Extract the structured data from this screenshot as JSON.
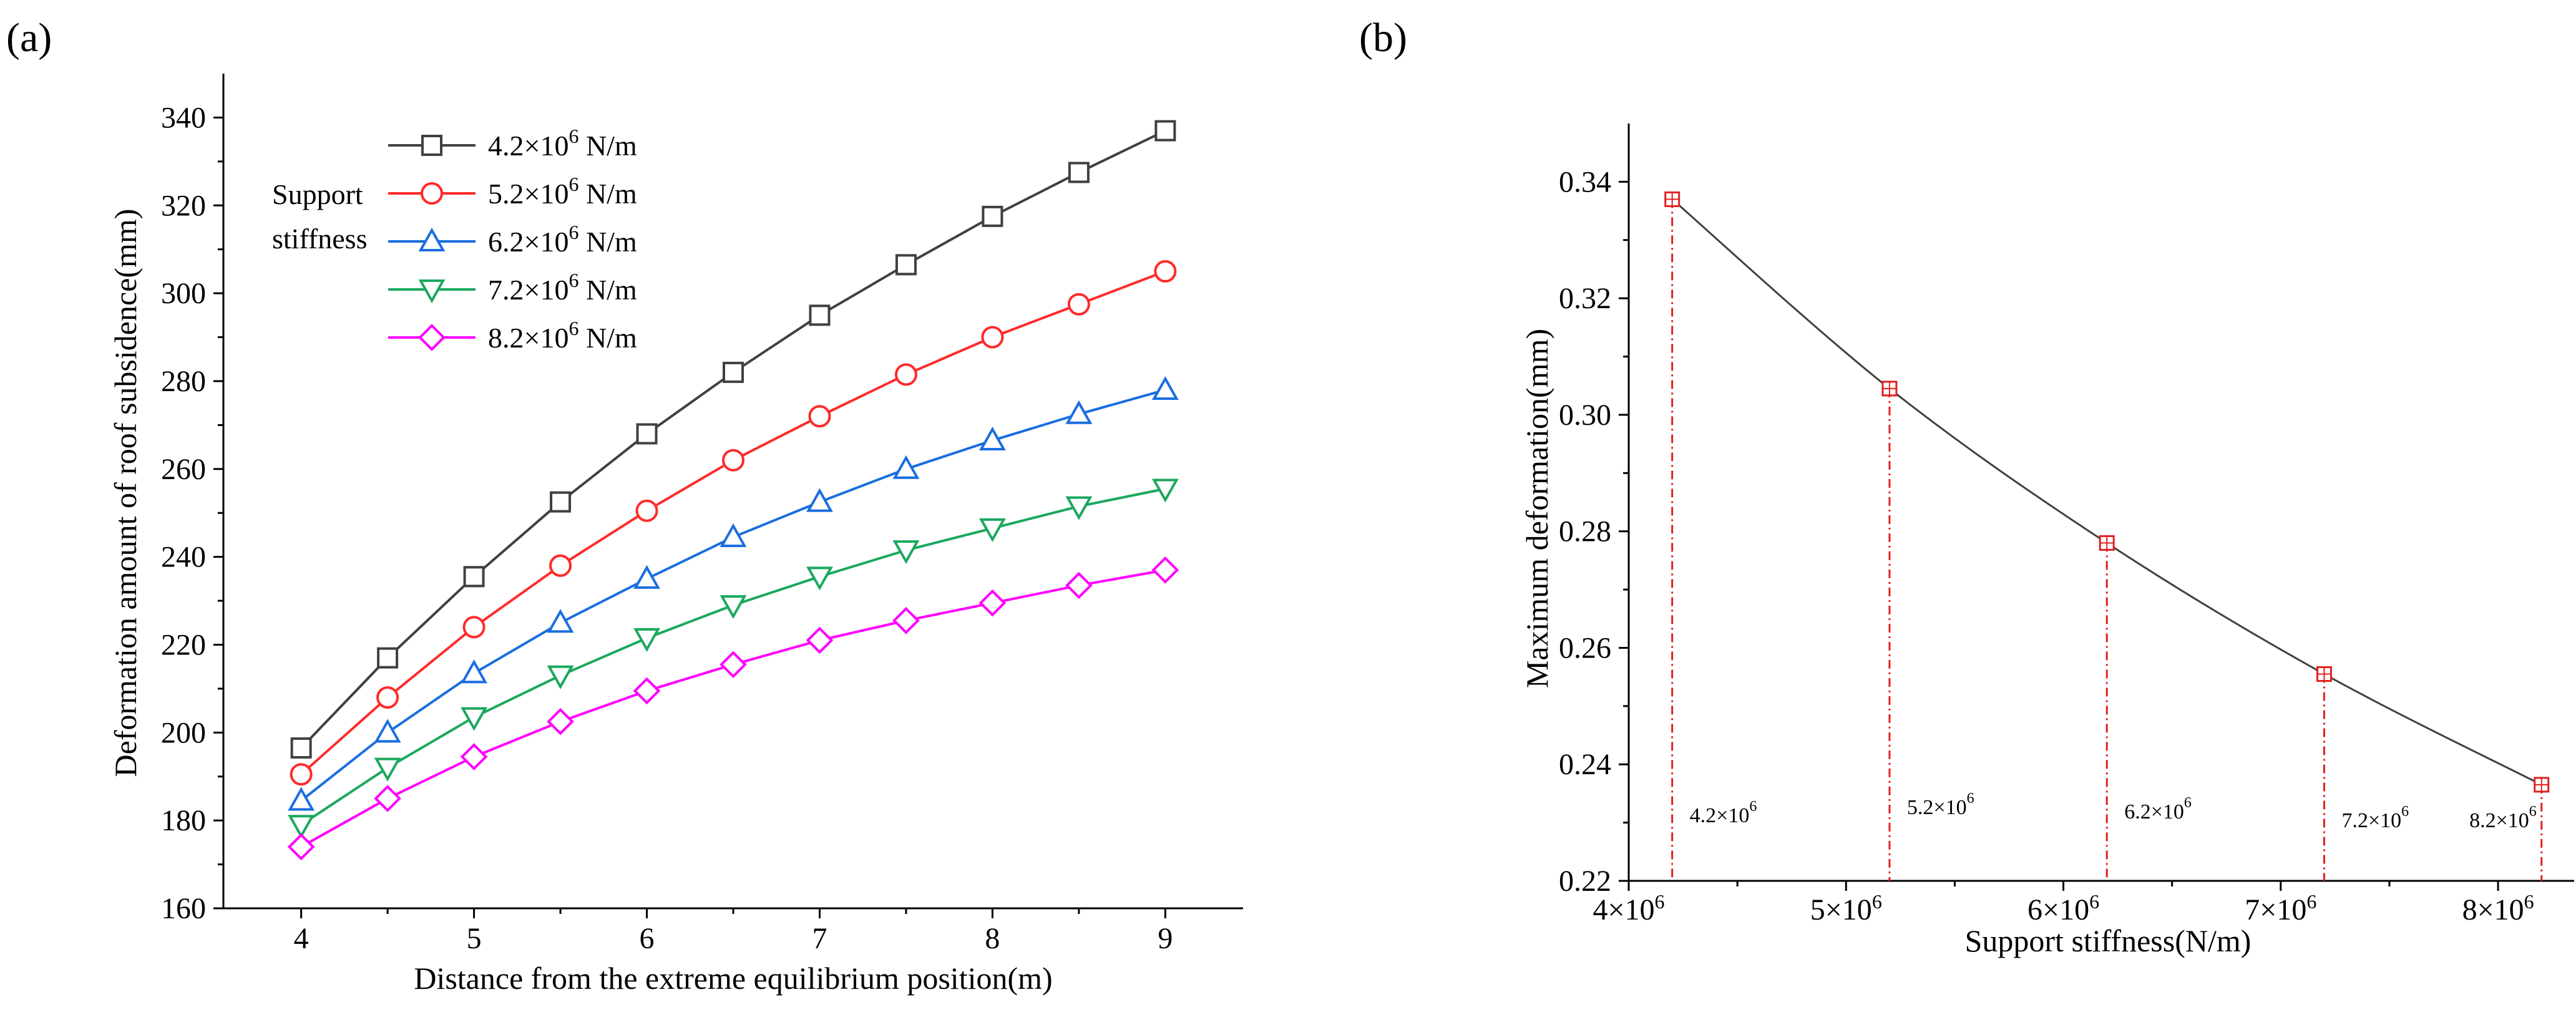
{
  "chart_data": [
    {
      "panel_label": "(a)",
      "type": "line",
      "xlabel": "Distance from the extreme equilibrium position(m)",
      "ylabel": "Deformation amount of roof subsidence(mm)",
      "xlim": [
        3.55,
        9.45
      ],
      "ylim": [
        160,
        350
      ],
      "xticks": [
        4,
        5,
        6,
        7,
        8,
        9
      ],
      "yticks": [
        160,
        180,
        200,
        220,
        240,
        260,
        280,
        300,
        320,
        340
      ],
      "legend_title": [
        "Support",
        "stiffness"
      ],
      "legend_position": "top-left",
      "x": [
        4,
        4.5,
        5,
        5.5,
        6,
        6.5,
        7,
        7.5,
        8,
        8.5,
        9
      ],
      "series": [
        {
          "name": "4.2×10⁶ N/m",
          "mantissa": "4.2",
          "unit": "N/m",
          "color": "#404040",
          "marker": "square",
          "values": [
            196.5,
            217,
            235.5,
            252.5,
            268,
            282,
            295,
            306.5,
            317.5,
            327.5,
            337
          ]
        },
        {
          "name": "5.2×10⁶ N/m",
          "mantissa": "5.2",
          "unit": "N/m",
          "color": "#ff2a2a",
          "marker": "circle",
          "values": [
            190.5,
            208,
            224,
            238,
            250.5,
            262,
            272,
            281.5,
            290,
            297.5,
            305
          ]
        },
        {
          "name": "6.2×10⁶ N/m",
          "mantissa": "6.2",
          "unit": "N/m",
          "color": "#1a6ee0",
          "marker": "triangle-up",
          "values": [
            184.5,
            200,
            213.5,
            225,
            235,
            244.5,
            252.5,
            260,
            266.5,
            272.5,
            278
          ]
        },
        {
          "name": "7.2×10⁶ N/m",
          "mantissa": "7.2",
          "unit": "N/m",
          "color": "#1aa85e",
          "marker": "triangle-down",
          "values": [
            179,
            192,
            203.5,
            213,
            221.5,
            229,
            235.5,
            241.5,
            246.5,
            251.5,
            255.5
          ]
        },
        {
          "name": "8.2×10⁶ N/m",
          "mantissa": "8.2",
          "unit": "N/m",
          "color": "#ff00ff",
          "marker": "diamond",
          "values": [
            174,
            185,
            194.5,
            202.5,
            209.5,
            215.5,
            221,
            225.5,
            229.5,
            233.5,
            237
          ]
        }
      ]
    },
    {
      "panel_label": "(b)",
      "type": "line",
      "xlabel": "Support stiffness(N/m)",
      "ylabel": "Maximum deformation(mm)",
      "xlim": [
        4.0,
        8.35
      ],
      "ylim": [
        0.22,
        0.35
      ],
      "x_scale_note": "x values in units of 10^6 N/m",
      "xticks": [
        {
          "value": 4,
          "label": "4×10"
        },
        {
          "value": 5,
          "label": "5×10"
        },
        {
          "value": 6,
          "label": "6×10"
        },
        {
          "value": 7,
          "label": "7×10"
        },
        {
          "value": 8,
          "label": "8×10"
        }
      ],
      "tick_exponent": "6",
      "yticks": [
        "0.22",
        "0.24",
        "0.26",
        "0.28",
        "0.30",
        "0.32",
        "0.34"
      ],
      "series": [
        {
          "name": "Maximum deformation",
          "color": "#404040",
          "marker": "square-cross",
          "marker_color": "#e02020",
          "x": [
            4.2,
            5.2,
            6.2,
            7.2,
            8.2
          ],
          "values": [
            0.337,
            0.3045,
            0.278,
            0.2555,
            0.2365
          ]
        }
      ],
      "drop_lines_color": "#e02020",
      "annotations": [
        {
          "x": 4.2,
          "text": "4.2×10",
          "exp": "6"
        },
        {
          "x": 5.2,
          "text": "5.2×10",
          "exp": "6"
        },
        {
          "x": 6.2,
          "text": "6.2×10",
          "exp": "6"
        },
        {
          "x": 7.2,
          "text": "7.2×10",
          "exp": "6"
        },
        {
          "x": 8.2,
          "text": "8.2×10",
          "exp": "6"
        }
      ]
    }
  ]
}
